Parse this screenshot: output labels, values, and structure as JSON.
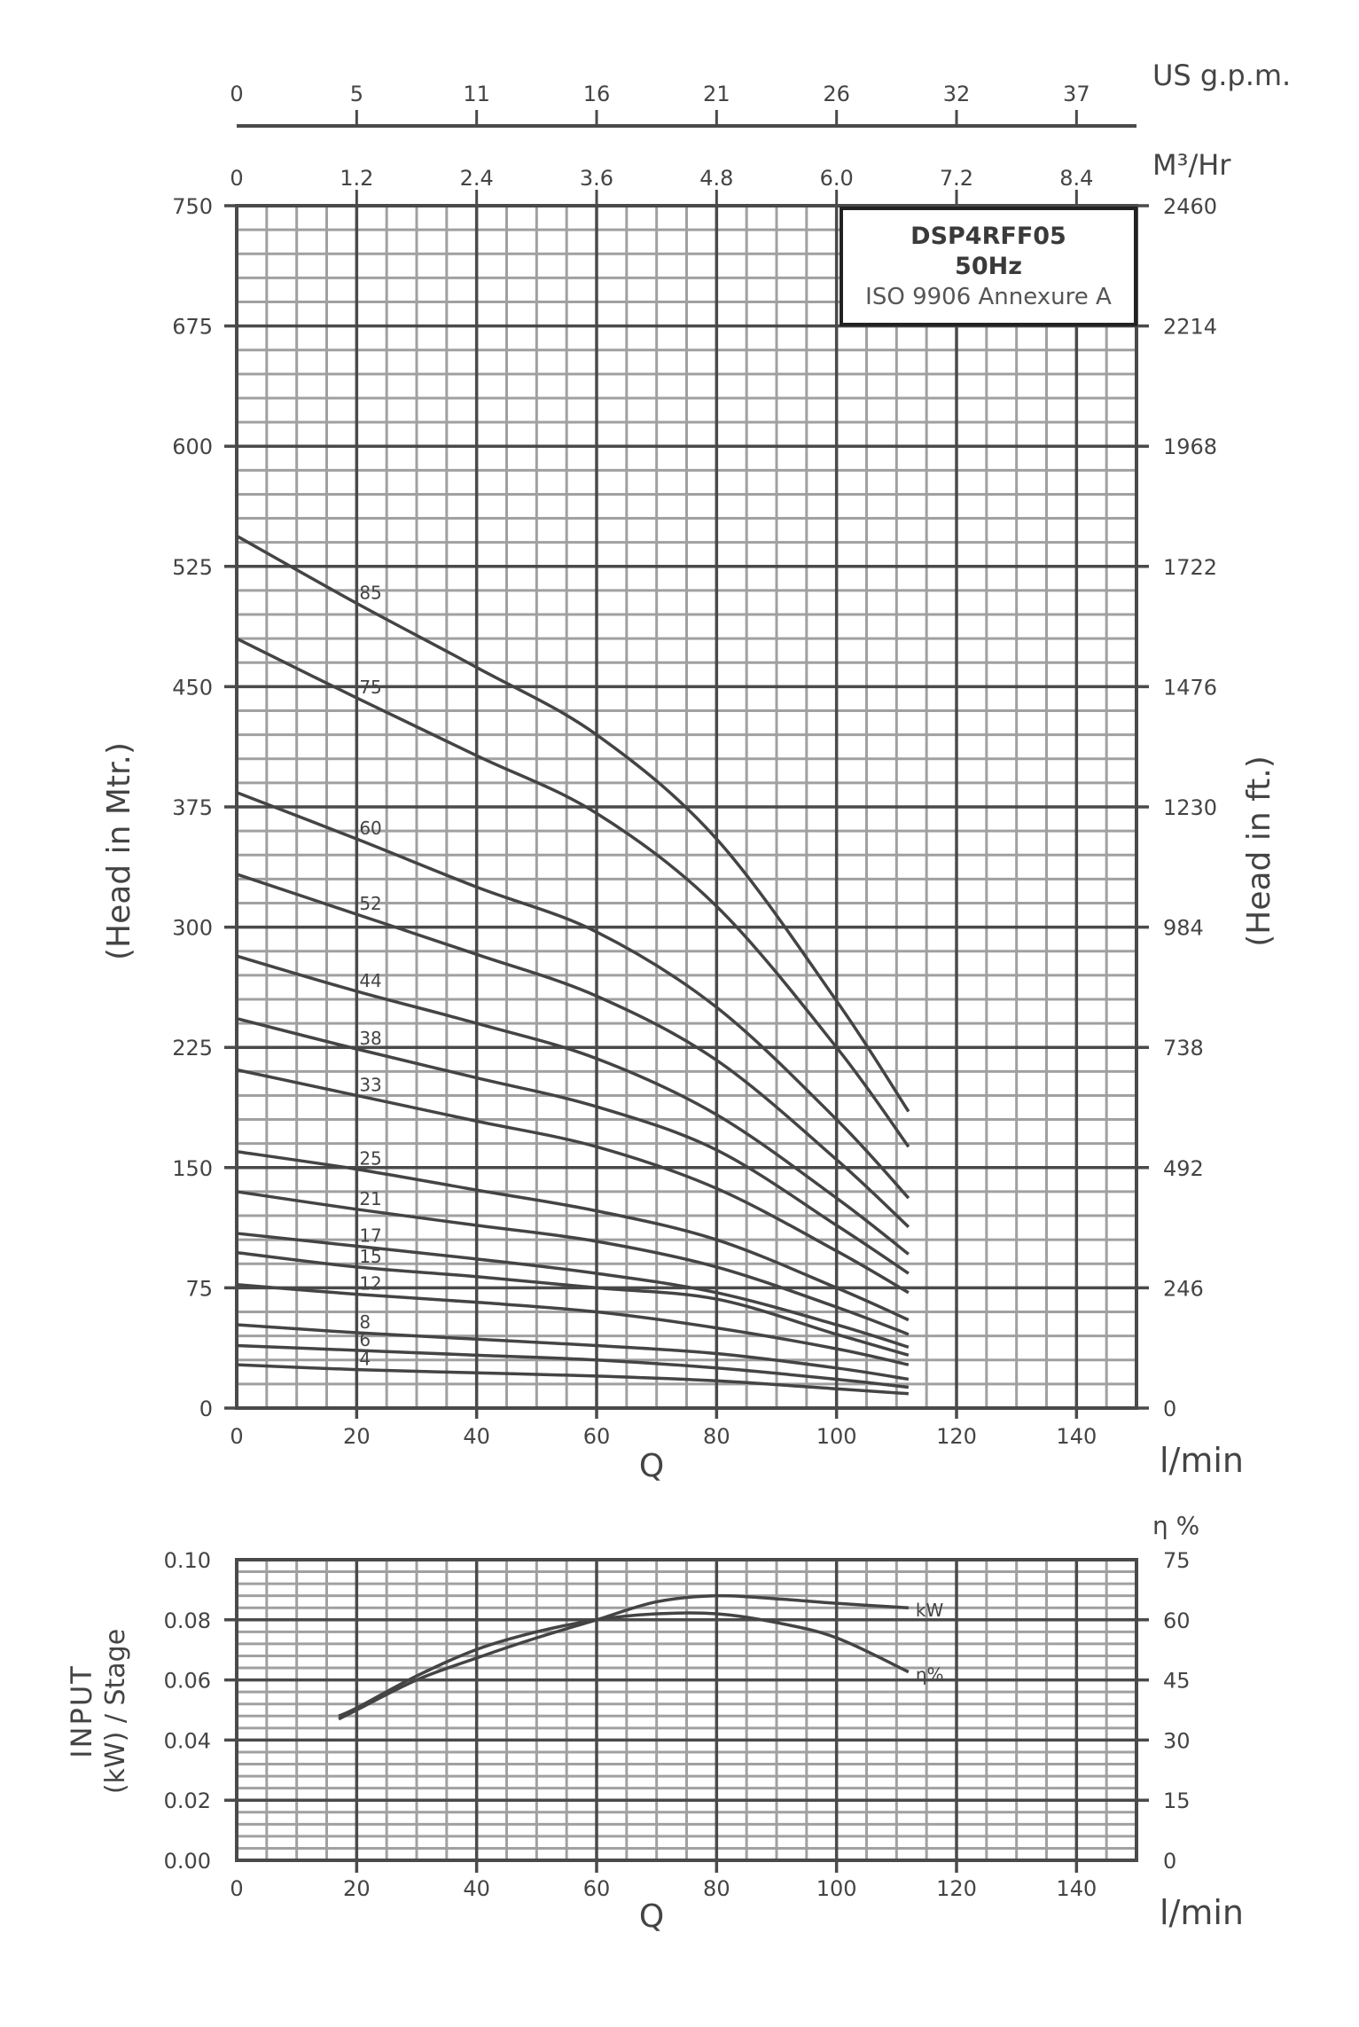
{
  "info_box": {
    "model": "DSP4RFF05",
    "frequency": "50Hz",
    "standard": "ISO 9906 Annexure A"
  },
  "colors": {
    "major_grid": "#4a4a4a",
    "minor_grid": "#a0a0a0",
    "curve": "#444444",
    "text": "#444444"
  },
  "top_axes": {
    "gpm": {
      "label": "US g.p.m.",
      "ticks": [
        "0",
        "5",
        "11",
        "16",
        "21",
        "26",
        "32",
        "37"
      ]
    },
    "m3hr": {
      "label": "M³/Hr",
      "ticks": [
        "0",
        "1.2",
        "2.4",
        "3.6",
        "4.8",
        "6.0",
        "7.2",
        "8.4"
      ]
    }
  },
  "chart_data": [
    {
      "type": "line",
      "title": "DSP4RFF05 50Hz ISO 9906 Annexure A — Head vs Flow",
      "xlabel": "Q",
      "xunit": "l/min",
      "ylabel": "(Head in Mtr.)",
      "ylabel_right": "(Head in ft.)",
      "xlim": [
        0,
        150
      ],
      "ylim": [
        0,
        750
      ],
      "x_ticks": [
        0,
        20,
        40,
        60,
        80,
        100,
        120,
        140
      ],
      "y_ticks": [
        0,
        75,
        150,
        225,
        300,
        375,
        450,
        525,
        600,
        675,
        750
      ],
      "y_ticks_right": [
        "0",
        "246",
        "492",
        "738",
        "984",
        "1230",
        "1476",
        "1722",
        "1968",
        "2214",
        "2460"
      ],
      "grid": true,
      "x": [
        0,
        20,
        40,
        60,
        80,
        100,
        112
      ],
      "series": [
        {
          "name": "85",
          "values": [
            544,
            502,
            462,
            420,
            355,
            254,
            185
          ]
        },
        {
          "name": "75",
          "values": [
            480,
            443,
            407,
            371,
            313,
            225,
            163
          ]
        },
        {
          "name": "60",
          "values": [
            384,
            355,
            325,
            297,
            250,
            180,
            131
          ]
        },
        {
          "name": "52",
          "values": [
            333,
            308,
            283,
            257,
            217,
            155,
            113
          ]
        },
        {
          "name": "44",
          "values": [
            282,
            260,
            240,
            218,
            183,
            131,
            96
          ]
        },
        {
          "name": "38",
          "values": [
            243,
            224,
            206,
            188,
            161,
            114,
            84
          ]
        },
        {
          "name": "33",
          "values": [
            211,
            195,
            179,
            163,
            137,
            98,
            72
          ]
        },
        {
          "name": "25",
          "values": [
            160,
            149,
            136,
            123,
            105,
            75,
            55
          ]
        },
        {
          "name": "21",
          "values": [
            135,
            124,
            114,
            104,
            88,
            63,
            46
          ]
        },
        {
          "name": "17",
          "values": [
            109,
            101,
            93,
            84,
            72,
            52,
            38
          ]
        },
        {
          "name": "15",
          "values": [
            97,
            88,
            82,
            75,
            68,
            46,
            33
          ]
        },
        {
          "name": "12",
          "values": [
            77,
            71,
            66,
            60,
            50,
            37,
            27
          ]
        },
        {
          "name": "8",
          "values": [
            52,
            47,
            43,
            39,
            34,
            25,
            18
          ]
        },
        {
          "name": "6",
          "values": [
            39,
            36,
            33,
            30,
            25,
            18,
            13
          ]
        },
        {
          "name": "4",
          "values": [
            27,
            24,
            22,
            20,
            17,
            12,
            9
          ]
        }
      ]
    },
    {
      "type": "line",
      "title": "Input power per stage and efficiency",
      "xlabel": "Q",
      "xunit": "l/min",
      "ylabel": "INPUT (kW) / Stage",
      "ylabel_right": "η %",
      "xlim": [
        0,
        150
      ],
      "ylim": [
        0,
        0.1
      ],
      "ylim_right": [
        0,
        75
      ],
      "x_ticks": [
        0,
        20,
        40,
        60,
        80,
        100,
        120,
        140
      ],
      "y_ticks": [
        "0.00",
        "0.02",
        "0.04",
        "0.06",
        "0.08",
        "0.10"
      ],
      "y_ticks_right": [
        "0",
        "15",
        "30",
        "45",
        "60",
        "75"
      ],
      "grid": true,
      "x": [
        17,
        20,
        30,
        40,
        50,
        60,
        70,
        80,
        90,
        100,
        112
      ],
      "series": [
        {
          "name": "kW",
          "axis": "left",
          "values": [
            0.047,
            0.05,
            0.06,
            0.0673,
            0.074,
            0.08,
            0.086,
            0.088,
            0.087,
            0.0855,
            0.084
          ]
        },
        {
          "name": "η%",
          "axis": "right",
          "values": [
            36,
            38,
            46,
            52.6,
            57,
            60,
            61.5,
            61.5,
            59.3,
            55.5,
            47
          ]
        }
      ]
    }
  ]
}
